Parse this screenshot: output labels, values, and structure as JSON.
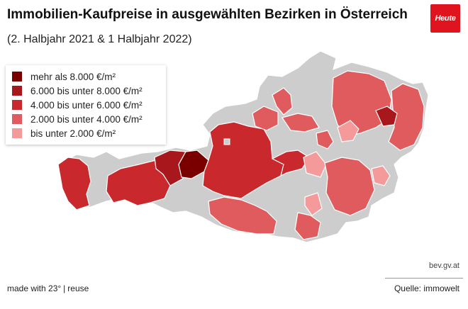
{
  "header": {
    "title": "Immobilien-Kaufpreise in ausgewählten Bezirken in Österreich",
    "subtitle": "(2. Halbjahr 2021 & 1 Halbjahr 2022)",
    "logo_text": "Heute"
  },
  "legend": {
    "items": [
      {
        "label": "mehr als 8.000 €/m²",
        "color": "#7a0000"
      },
      {
        "label": "6.000 bis unter 8.000 €/m²",
        "color": "#a8171b"
      },
      {
        "label": "4.000 bis unter 6.000 €/m²",
        "color": "#c9282c"
      },
      {
        "label": "2.000 bis unter 4.000 €/m²",
        "color": "#e05b5e"
      },
      {
        "label": "bis unter 2.000 €/m²",
        "color": "#f59a9a"
      }
    ]
  },
  "map": {
    "no_data_color": "#cdcdcd"
  },
  "footer": {
    "source_geo": "bev.gv.at",
    "made_with": "made with 23°",
    "separator": "|",
    "reuse": "reuse",
    "source": "Quelle: immowelt"
  }
}
